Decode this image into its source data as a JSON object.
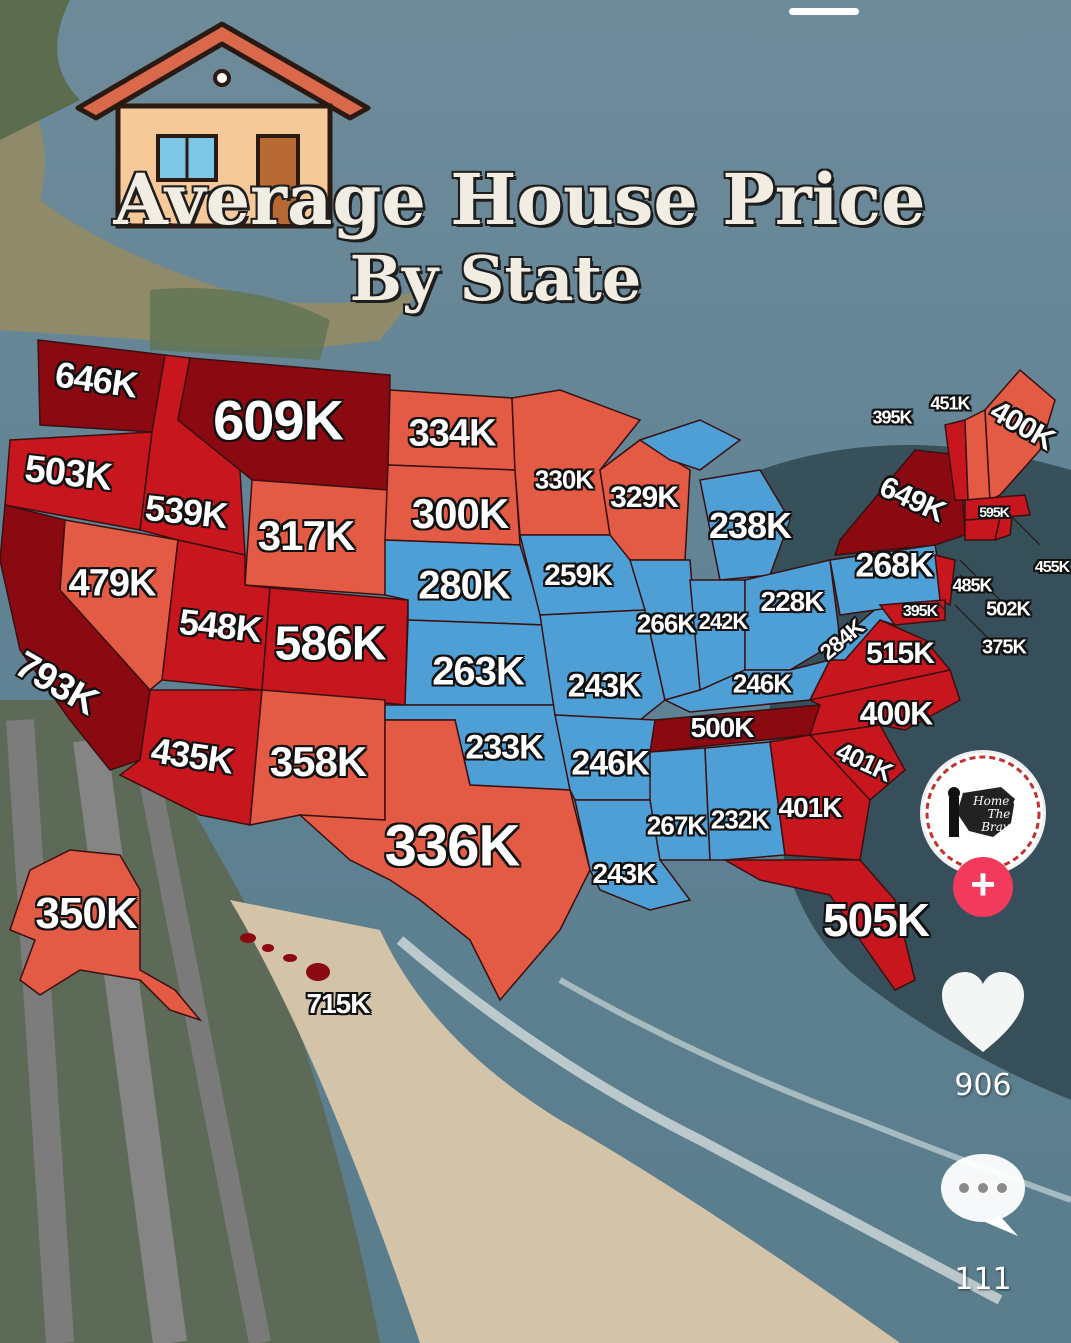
{
  "title_line1": "Average House Price",
  "title_line2": "By State",
  "colors": {
    "highest": "#8b0a12",
    "high": "#c8161e",
    "mid": "#e35a45",
    "low": "#4e9fd6",
    "accent_follow": "#f23b5c"
  },
  "states": [
    {
      "label": "646K"
    },
    {
      "label": "609K"
    },
    {
      "label": "334K"
    },
    {
      "label": "503K"
    },
    {
      "label": "539K"
    },
    {
      "label": "317K"
    },
    {
      "label": "300K"
    },
    {
      "label": "330K"
    },
    {
      "label": "329K"
    },
    {
      "label": "238K"
    },
    {
      "label": "479K"
    },
    {
      "label": "548K"
    },
    {
      "label": "586K"
    },
    {
      "label": "280K"
    },
    {
      "label": "259K"
    },
    {
      "label": "793K"
    },
    {
      "label": "263K"
    },
    {
      "label": "243K"
    },
    {
      "label": "266K"
    },
    {
      "label": "242K"
    },
    {
      "label": "228K"
    },
    {
      "label": "284K"
    },
    {
      "label": "246K"
    },
    {
      "label": "435K"
    },
    {
      "label": "358K"
    },
    {
      "label": "233K"
    },
    {
      "label": "246K"
    },
    {
      "label": "500K"
    },
    {
      "label": "400K"
    },
    {
      "label": "401K"
    },
    {
      "label": "336K"
    },
    {
      "label": "267K"
    },
    {
      "label": "232K"
    },
    {
      "label": "401K"
    },
    {
      "label": "243K"
    },
    {
      "label": "505K"
    },
    {
      "label": "350K"
    },
    {
      "label": "715K"
    },
    {
      "label": "395K"
    },
    {
      "label": "451K"
    },
    {
      "label": "400K"
    },
    {
      "label": "649K"
    },
    {
      "label": "595K"
    },
    {
      "label": "455K"
    },
    {
      "label": "268K"
    },
    {
      "label": "485K"
    },
    {
      "label": "395K"
    },
    {
      "label": "502K"
    },
    {
      "label": "375K"
    },
    {
      "label": "515K"
    }
  ],
  "sidebar": {
    "avatar_text": "Home of The Brave",
    "follow_symbol": "+",
    "likes": "906",
    "comments": "111",
    "like_icon": "heart-icon",
    "comment_icon": "comment-icon"
  }
}
